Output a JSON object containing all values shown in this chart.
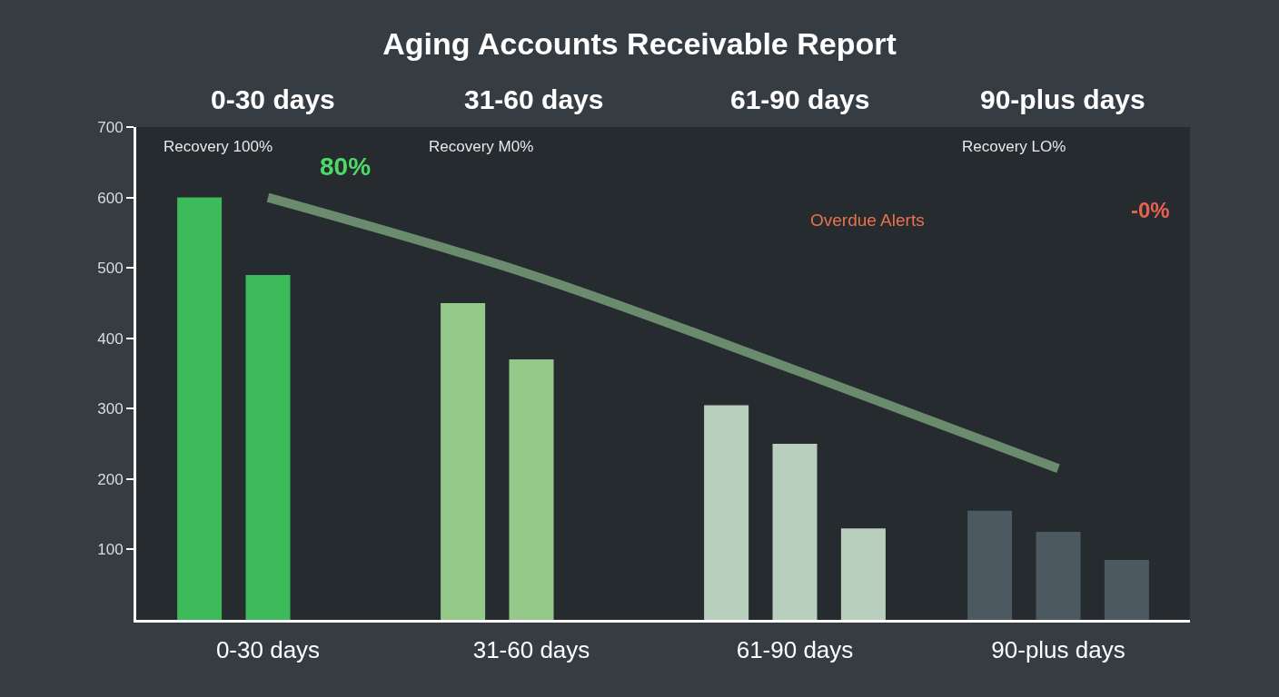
{
  "chart_data": {
    "type": "bar",
    "title": "Aging Accounts Receivable Report",
    "categories": [
      "0-30 days",
      "31-60 days",
      "61-90 days",
      "90-plus days"
    ],
    "series": [
      {
        "colors": [
          "#3dba5a",
          "#94c98a",
          "#b9cfbd",
          "#4d5960"
        ],
        "values": [
          600,
          450,
          305,
          155
        ]
      },
      {
        "colors": [
          "#3dba5a",
          "#94c98a",
          "#b9cfbd",
          "#4d5960"
        ],
        "values": [
          490,
          370,
          250,
          125
        ]
      },
      {
        "colors": [
          "#3dba5a",
          "#94c98a",
          "#b9cfbd",
          "#4d5960"
        ],
        "values": [
          null,
          null,
          130,
          85
        ]
      },
      {
        "type": "line",
        "color": "#8fbf8f",
        "values": [
          600,
          490,
          355,
          215
        ]
      }
    ],
    "ylim": [
      0,
      700
    ],
    "yticks": [
      100,
      200,
      300,
      400,
      500,
      600,
      700
    ],
    "annotations": [
      "0-30 days",
      "31-60 days",
      "61-90 days",
      "90-plus days",
      "Recovery 100%",
      "80%",
      "Recovery M0%",
      "Overdue Alerts",
      "Recovery LO%",
      "-0%"
    ],
    "grid": false,
    "marker": "none"
  }
}
